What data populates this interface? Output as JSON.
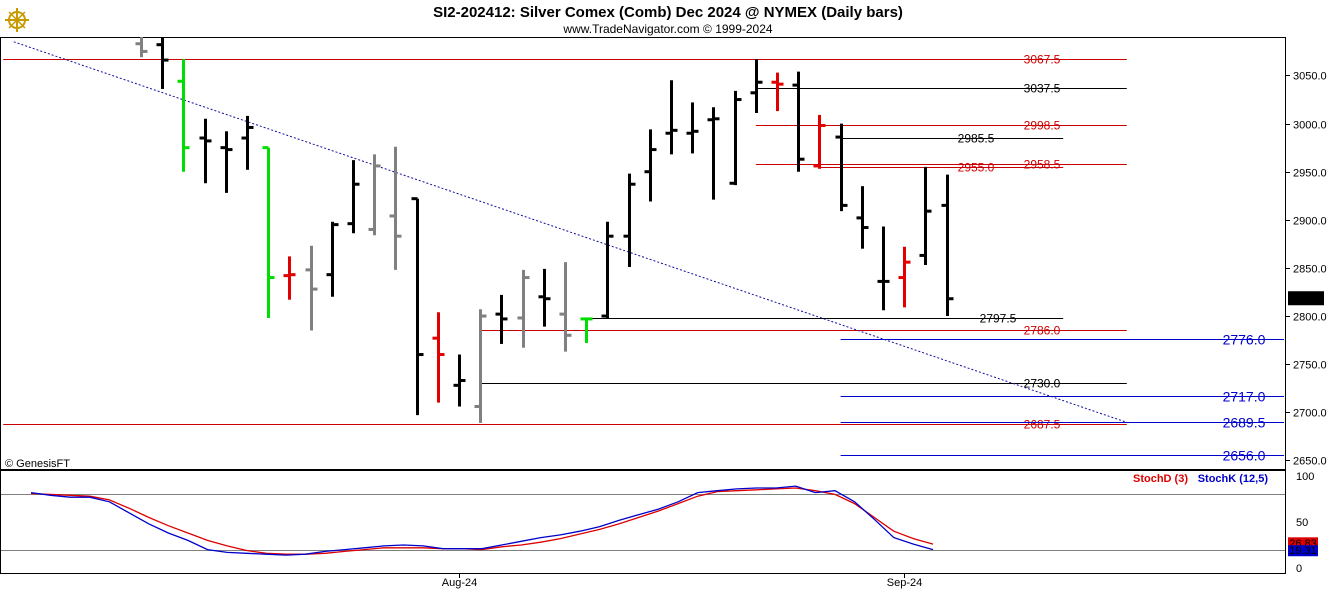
{
  "header": {
    "title": "SI2-202412:  Silver Comex (Comb) Dec 2024 @ NYMEX  (Daily bars)",
    "subtitle": "www.TradeNavigator.com © 1999-2024",
    "logo_icon": "ship-wheel-logo-icon"
  },
  "credit": "© GenesisFT",
  "colors": {
    "bull": "#00dd00",
    "bear": "#e00000",
    "normal": "#000000",
    "inside": "#808080",
    "trendline": "#1010a0",
    "red_level": "#cc0000",
    "blue_level": "#0000cc",
    "stochD": "#dd0000",
    "stochK": "#0000cc"
  },
  "chart_data": [
    {
      "type": "ohlc",
      "title": "SI2-202412:  Silver Comex (Comb) Dec 2024 @ NYMEX  (Daily bars)",
      "ylim": [
        2640,
        3090
      ],
      "y_ticks": [
        2650.0,
        2700.0,
        2750.0,
        2800.0,
        2850.0,
        2900.0,
        2950.0,
        3000.0,
        3050.0
      ],
      "x_ticks": [
        {
          "label": "Aug-24",
          "bar": 15
        },
        {
          "label": "Sep-24",
          "bar": 36
        }
      ],
      "last_price": "2818.5",
      "bars": [
        {
          "o": 3083,
          "h": 3090,
          "l": 3069,
          "c": 3075,
          "color": "inside"
        },
        {
          "o": 3082,
          "h": 3090,
          "l": 3036,
          "c": 3066,
          "color": "normal"
        },
        {
          "o": 3044,
          "h": 3067,
          "l": 2950,
          "c": 2975,
          "color": "bull"
        },
        {
          "o": 2985,
          "h": 3005,
          "l": 2938,
          "c": 2982,
          "color": "normal"
        },
        {
          "o": 2975,
          "h": 2992,
          "l": 2928,
          "c": 2973,
          "color": "normal"
        },
        {
          "o": 2985,
          "h": 3008,
          "l": 2952,
          "c": 2996,
          "color": "normal"
        },
        {
          "o": 2975,
          "h": 2975,
          "l": 2798,
          "c": 2840,
          "color": "bull"
        },
        {
          "o": 2842,
          "h": 2862,
          "l": 2817,
          "c": 2843,
          "color": "bear"
        },
        {
          "o": 2848,
          "h": 2873,
          "l": 2785,
          "c": 2828,
          "color": "inside"
        },
        {
          "o": 2843,
          "h": 2898,
          "l": 2820,
          "c": 2895,
          "color": "normal"
        },
        {
          "o": 2896,
          "h": 2962,
          "l": 2886,
          "c": 2937,
          "color": "normal"
        },
        {
          "o": 2890,
          "h": 2968,
          "l": 2884,
          "c": 2956,
          "color": "inside"
        },
        {
          "o": 2904,
          "h": 2976,
          "l": 2848,
          "c": 2883,
          "color": "inside"
        },
        {
          "o": 2922,
          "h": 2922,
          "l": 2697,
          "c": 2760,
          "color": "normal"
        },
        {
          "o": 2777,
          "h": 2804,
          "l": 2710,
          "c": 2760,
          "color": "bear"
        },
        {
          "o": 2728,
          "h": 2760,
          "l": 2706,
          "c": 2733,
          "color": "normal"
        },
        {
          "o": 2706,
          "h": 2807,
          "l": 2689,
          "c": 2800,
          "color": "inside"
        },
        {
          "o": 2802,
          "h": 2822,
          "l": 2771,
          "c": 2797,
          "color": "normal"
        },
        {
          "o": 2798,
          "h": 2848,
          "l": 2767,
          "c": 2840,
          "color": "inside"
        },
        {
          "o": 2820,
          "h": 2849,
          "l": 2789,
          "c": 2818,
          "color": "normal"
        },
        {
          "o": 2802,
          "h": 2856,
          "l": 2763,
          "c": 2780,
          "color": "inside"
        },
        {
          "o": 2797,
          "h": 2797,
          "l": 2772,
          "c": 2797,
          "color": "bull"
        },
        {
          "o": 2800,
          "h": 2898,
          "l": 2798,
          "c": 2883,
          "color": "normal"
        },
        {
          "o": 2883,
          "h": 2948,
          "l": 2851,
          "c": 2937,
          "color": "normal"
        },
        {
          "o": 2950,
          "h": 2994,
          "l": 2919,
          "c": 2973,
          "color": "normal"
        },
        {
          "o": 2990,
          "h": 3045,
          "l": 2968,
          "c": 2993,
          "color": "normal"
        },
        {
          "o": 2990,
          "h": 3022,
          "l": 2969,
          "c": 2992,
          "color": "normal"
        },
        {
          "o": 3004,
          "h": 3017,
          "l": 2921,
          "c": 3005,
          "color": "normal"
        },
        {
          "o": 2938,
          "h": 3034,
          "l": 2936,
          "c": 3025,
          "color": "normal"
        },
        {
          "o": 3032,
          "h": 3067,
          "l": 3011,
          "c": 3043,
          "color": "normal"
        },
        {
          "o": 3043,
          "h": 3053,
          "l": 3013,
          "c": 3041,
          "color": "bear"
        },
        {
          "o": 3040,
          "h": 3054,
          "l": 2950,
          "c": 2963,
          "color": "normal"
        },
        {
          "o": 2956,
          "h": 3009,
          "l": 2953,
          "c": 2998,
          "color": "bear"
        },
        {
          "o": 2986,
          "h": 3000,
          "l": 2909,
          "c": 2915,
          "color": "normal"
        },
        {
          "o": 2902,
          "h": 2935,
          "l": 2870,
          "c": 2892,
          "color": "normal"
        },
        {
          "o": 2836,
          "h": 2893,
          "l": 2806,
          "c": 2836,
          "color": "normal"
        },
        {
          "o": 2840,
          "h": 2872,
          "l": 2809,
          "c": 2856,
          "color": "bear"
        },
        {
          "o": 2863,
          "h": 2955,
          "l": 2853,
          "c": 2909,
          "color": "normal"
        },
        {
          "o": 2915,
          "h": 2947,
          "l": 2800,
          "c": 2818,
          "color": "normal"
        }
      ],
      "trendline": {
        "from": {
          "bar": -6,
          "price": 3085
        },
        "to": {
          "bar": 46.5,
          "price": 2689.5
        }
      },
      "levels": [
        {
          "price": 3067.5,
          "label": "3067.5",
          "color": "red_level",
          "x1_bar": -6.5,
          "x2_bar": 46.5
        },
        {
          "price": 2687.5,
          "label": "2687.5",
          "color": "red_level",
          "x1_bar": -6.5,
          "x2_bar": 46.5
        },
        {
          "price": 3037.5,
          "label": "3037.5",
          "color": "normal",
          "x1_bar": 29,
          "x2_bar": 46.5
        },
        {
          "price": 2998.5,
          "label": "2998.5",
          "color": "red_level",
          "x1_bar": 29,
          "x2_bar": 46.5
        },
        {
          "price": 2985.5,
          "label": "2985.5",
          "color": "normal",
          "x1_bar": 33,
          "x2_bar": 43.5
        },
        {
          "price": 2958.5,
          "label": "2958.5",
          "color": "red_level",
          "x1_bar": 29,
          "x2_bar": 46.5
        },
        {
          "price": 2955.0,
          "label": "2955.0",
          "color": "red_level",
          "x1_bar": 32,
          "x2_bar": 43.5
        },
        {
          "price": 2797.5,
          "label": "2797.5",
          "color": "normal",
          "x1_bar": 21,
          "x2_bar": 43.5
        },
        {
          "price": 2786.0,
          "label": "2786.0",
          "color": "red_level",
          "x1_bar": 16,
          "x2_bar": 46.5
        },
        {
          "price": 2776.0,
          "label": "2776.0",
          "color": "blue_level",
          "x1_bar": 33,
          "x2_bar": 55.5
        },
        {
          "price": 2730.0,
          "label": "2730.0",
          "color": "normal",
          "x1_bar": 16,
          "x2_bar": 46.5
        },
        {
          "price": 2717.0,
          "label": "2717.0",
          "color": "blue_level",
          "x1_bar": 33,
          "x2_bar": 55.5
        },
        {
          "price": 2689.5,
          "label": "2689.5",
          "color": "blue_level",
          "x1_bar": 33,
          "x2_bar": 55.5
        },
        {
          "price": 2656.0,
          "label": "2656.0",
          "color": "blue_level",
          "x1_bar": 33,
          "x2_bar": 55.5
        }
      ]
    },
    {
      "type": "line",
      "title": "Stochastics",
      "ylim": [
        0,
        100
      ],
      "y_ticks": [
        0,
        50,
        100
      ],
      "ref_lines": [
        80,
        20
      ],
      "legend": [
        {
          "name": "StochD (3)",
          "color": "stochD"
        },
        {
          "name": "StochK (12,5)",
          "color": "stochK"
        }
      ],
      "last_values": {
        "stochD": "26.83",
        "stochK": "19.31"
      },
      "series": [
        {
          "name": "StochD (3)",
          "color": "stochD",
          "values": [
            81,
            80,
            79,
            78,
            74,
            65,
            55,
            46,
            38,
            30,
            24,
            19,
            16,
            15,
            15,
            16,
            18,
            20,
            22,
            22,
            22,
            21,
            21,
            20,
            23,
            25,
            28,
            32,
            37,
            42,
            48,
            55,
            62,
            70,
            78,
            83,
            84,
            85,
            86,
            87,
            84,
            80,
            70,
            55,
            40,
            32,
            26
          ]
        },
        {
          "name": "StochK (12,5)",
          "color": "stochK",
          "values": [
            82,
            79,
            77,
            77,
            72,
            60,
            48,
            38,
            30,
            20,
            17,
            16,
            15,
            14,
            15,
            18,
            20,
            22,
            24,
            25,
            24,
            21,
            21,
            21,
            25,
            29,
            33,
            36,
            40,
            45,
            52,
            58,
            64,
            72,
            82,
            84,
            86,
            87,
            87,
            89,
            82,
            84,
            72,
            53,
            33,
            26,
            20
          ]
        }
      ]
    }
  ]
}
